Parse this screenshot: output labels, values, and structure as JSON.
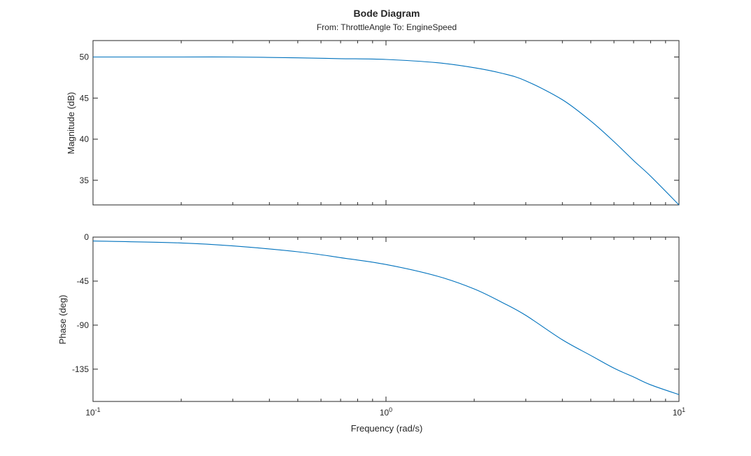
{
  "title": "Bode Diagram",
  "subtitle": "From: ThrottleAngle  To: EngineSpeed",
  "line_color": "#0072bd",
  "chart_data": [
    {
      "type": "line",
      "ylabel": "Magnitude (dB)",
      "xscale": "log",
      "xlim": [
        0.1,
        10
      ],
      "ylim": [
        32,
        52
      ],
      "yticks": [
        {
          "value": 50,
          "label": "50"
        },
        {
          "value": 45,
          "label": "45"
        },
        {
          "value": 40,
          "label": "40"
        },
        {
          "value": 35,
          "label": "35"
        }
      ],
      "series": [
        {
          "x": [
            0.1,
            0.2,
            0.3,
            0.5,
            0.7,
            1.0,
            1.5,
            2.0,
            2.5,
            3.0,
            4.0,
            5.0,
            6.0,
            7.0,
            8.0,
            10.0
          ],
          "y": [
            50.0,
            50.0,
            50.0,
            49.9,
            49.8,
            49.7,
            49.3,
            48.7,
            48.0,
            47.1,
            44.8,
            42.2,
            39.7,
            37.4,
            35.5,
            32.0
          ]
        }
      ]
    },
    {
      "type": "line",
      "ylabel": "Phase (deg)",
      "xlabel": "Frequency (rad/s)",
      "xscale": "log",
      "xlim": [
        0.1,
        10
      ],
      "ylim": [
        -168,
        0
      ],
      "xticks": [
        {
          "value": 0.1,
          "base": "10",
          "exp": "-1"
        },
        {
          "value": 1,
          "base": "10",
          "exp": "0"
        },
        {
          "value": 10,
          "base": "10",
          "exp": "1"
        }
      ],
      "yticks": [
        {
          "value": 0,
          "label": "0"
        },
        {
          "value": -45,
          "label": "-45"
        },
        {
          "value": -90,
          "label": "-90"
        },
        {
          "value": -135,
          "label": "-135"
        }
      ],
      "series": [
        {
          "x": [
            0.1,
            0.2,
            0.3,
            0.5,
            0.7,
            1.0,
            1.5,
            2.0,
            2.5,
            3.0,
            4.0,
            5.0,
            6.0,
            7.0,
            8.0,
            10.0
          ],
          "y": [
            -4,
            -6,
            -9,
            -15,
            -21,
            -28,
            -40,
            -53,
            -67,
            -80,
            -105,
            -121,
            -134,
            -143,
            -151,
            -161
          ]
        }
      ]
    }
  ]
}
